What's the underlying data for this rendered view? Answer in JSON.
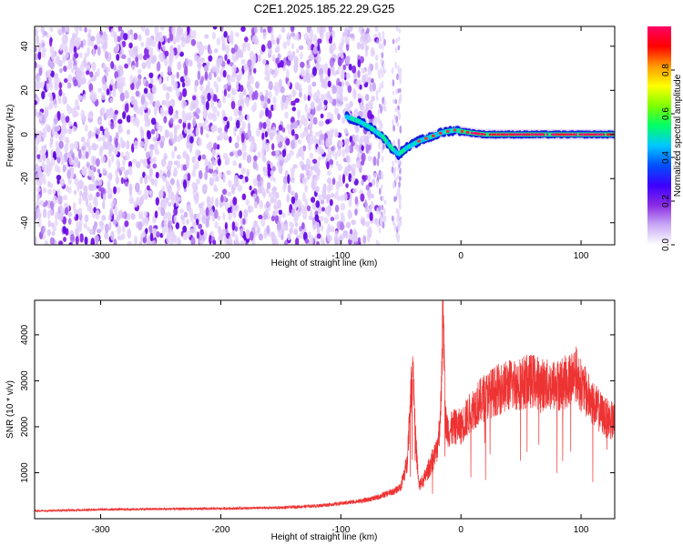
{
  "title": "C2E1.2025.185.22.29.G25",
  "chart_data": [
    {
      "type": "heatmap",
      "xlabel": "Height of straight line (km)",
      "ylabel": "Frequency (Hz)",
      "xlim": [
        -355,
        128
      ],
      "ylim": [
        -50,
        49
      ],
      "xticks": [
        -300,
        -200,
        -100,
        0,
        100
      ],
      "yticks": [
        -40,
        -20,
        0,
        20,
        40
      ],
      "noise_region_x": [
        -355,
        -70
      ],
      "noise_region_x_sparse": [
        -70,
        -50
      ],
      "signal_track": {
        "x": [
          -95,
          -85,
          -75,
          -65,
          -58,
          -52,
          -45,
          -35,
          -25,
          -15,
          -5,
          5,
          20,
          40,
          60,
          80,
          100,
          128
        ],
        "y": [
          8,
          6,
          3,
          -1,
          -6,
          -9,
          -6,
          -3,
          -1,
          1,
          2,
          1,
          0,
          0,
          0,
          0,
          0,
          0
        ]
      },
      "colorbar": {
        "label": "Normalized spectral amplitude",
        "range": [
          0.0,
          1.0
        ],
        "ticks": [
          "0.0",
          "0.2",
          "0.4",
          "0.6",
          "0.8"
        ],
        "colors": [
          "#ffffff",
          "#c9a9f5",
          "#8a2be2",
          "#3c00ff",
          "#0050ff",
          "#00c8ff",
          "#00ff66",
          "#7fff00",
          "#ffff00",
          "#ff9900",
          "#ff0000",
          "#ff0066"
        ]
      },
      "grid": false
    },
    {
      "type": "line",
      "xlabel": "Height of straight line (km)",
      "ylabel": "SNR (10 * v/v)",
      "xlim": [
        -355,
        128
      ],
      "ylim": [
        0,
        4750
      ],
      "xticks": [
        -300,
        -200,
        -100,
        0,
        100
      ],
      "yticks": [
        1000,
        2000,
        3000,
        4000
      ],
      "series": [
        {
          "color": "#ee3333",
          "x": [
            -355,
            -300,
            -250,
            -200,
            -150,
            -120,
            -100,
            -80,
            -70,
            -60,
            -55,
            -50,
            -45,
            -42,
            -40,
            -38,
            -35,
            -30,
            -25,
            -20,
            -17,
            -15,
            -13,
            -10,
            -5,
            0,
            10,
            20,
            30,
            40,
            50,
            60,
            70,
            80,
            90,
            95,
            100,
            110,
            120,
            128
          ],
          "y": [
            170,
            200,
            210,
            220,
            240,
            280,
            330,
            400,
            460,
            560,
            600,
            700,
            1200,
            2600,
            3500,
            1800,
            700,
            900,
            1200,
            1500,
            2200,
            4700,
            2100,
            1900,
            2000,
            2000,
            2400,
            2650,
            2800,
            2900,
            2950,
            3000,
            2900,
            2900,
            3000,
            3200,
            2900,
            2500,
            2200,
            2100
          ],
          "noise": 0.1
        }
      ],
      "grid": false
    }
  ]
}
